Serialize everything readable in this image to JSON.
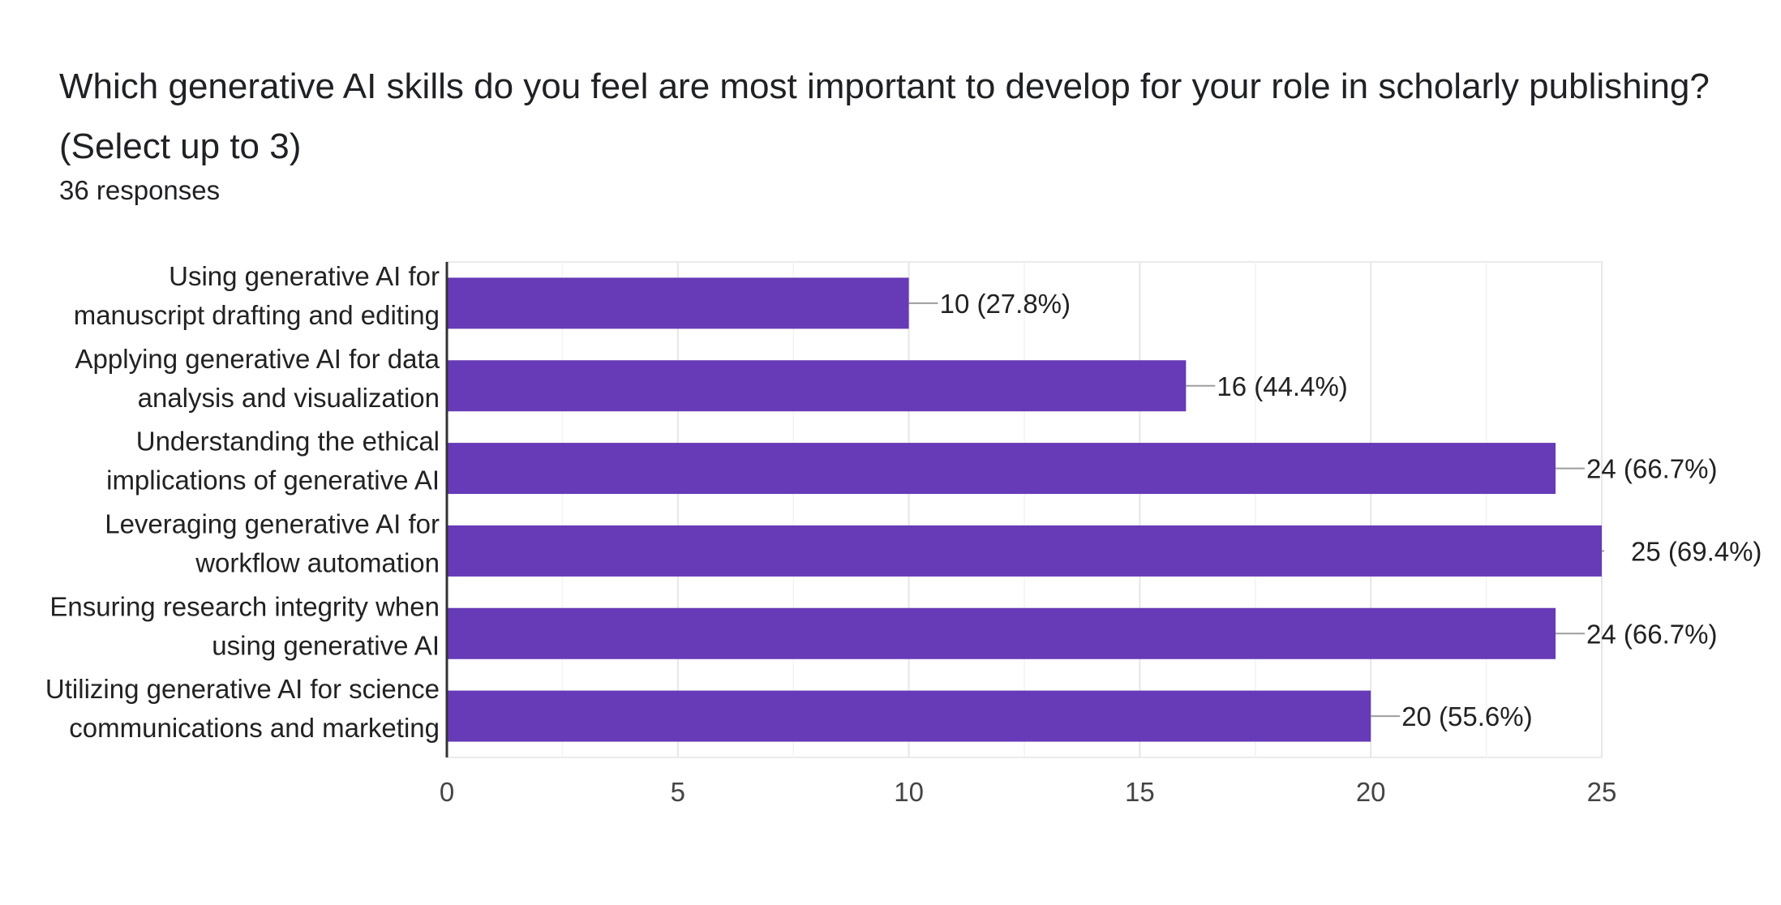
{
  "title": "Which generative AI skills do you feel are most important to develop for your role in scholarly publishing? (Select up to 3)",
  "subtitle": "36 responses",
  "colors": {
    "bar": "#673ab7",
    "grid": "#ebebeb",
    "axis": "#333333",
    "leader": "#9e9e9e"
  },
  "chart_data": {
    "type": "bar",
    "orientation": "horizontal",
    "title": "Which generative AI skills do you feel are most important to develop for your role in scholarly publishing? (Select up to 3)",
    "subtitle": "36 responses",
    "categories": [
      [
        "Using generative AI for",
        "manuscript drafting and editing"
      ],
      [
        "Applying generative AI for data",
        "analysis and visualization"
      ],
      [
        "Understanding the ethical",
        "implications of generative AI"
      ],
      [
        "Leveraging generative AI for",
        "workflow automation"
      ],
      [
        "Ensuring research integrity when",
        "using generative AI"
      ],
      [
        "Utilizing generative AI for science",
        "communications and marketing"
      ]
    ],
    "values": [
      10,
      16,
      24,
      25,
      24,
      20
    ],
    "data_labels": [
      "10 (27.8%)",
      "16 (44.4%)",
      "24 (66.7%)",
      "25 (69.4%)",
      "24 (66.7%)",
      "20 (55.6%)"
    ],
    "xlim": [
      0,
      25
    ],
    "xticks": [
      0,
      5,
      10,
      15,
      20,
      25
    ],
    "xlabel": "",
    "ylabel": "",
    "grid": true
  }
}
